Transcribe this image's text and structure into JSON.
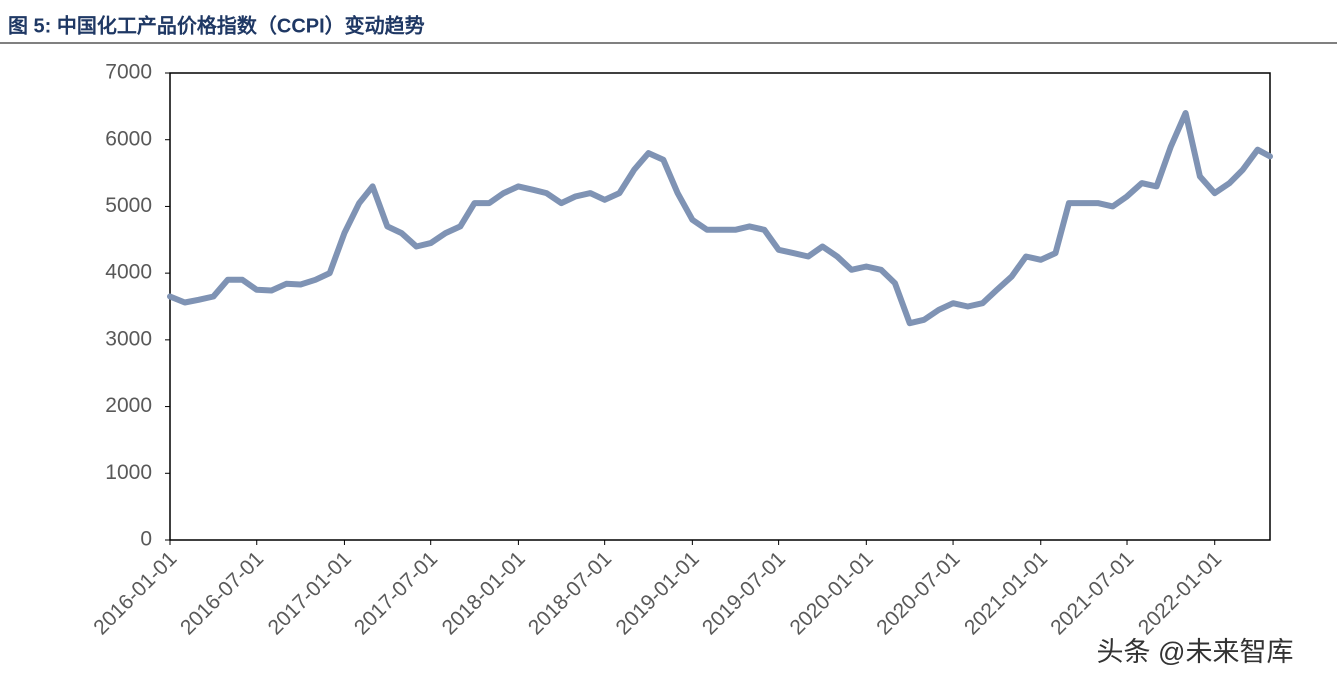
{
  "chart_data": {
    "type": "line",
    "title": "图 5:  中国化工产品价格指数（CCPI）变动趋势",
    "watermark": "头条 @未来智库",
    "x": [
      "2016-01-01",
      "2016-02-01",
      "2016-03-01",
      "2016-04-01",
      "2016-05-01",
      "2016-06-01",
      "2016-07-01",
      "2016-08-01",
      "2016-09-01",
      "2016-10-01",
      "2016-11-01",
      "2016-12-01",
      "2017-01-01",
      "2017-02-01",
      "2017-03-01",
      "2017-04-01",
      "2017-05-01",
      "2017-06-01",
      "2017-07-01",
      "2017-08-01",
      "2017-09-01",
      "2017-10-01",
      "2017-11-01",
      "2017-12-01",
      "2018-01-01",
      "2018-02-01",
      "2018-03-01",
      "2018-04-01",
      "2018-05-01",
      "2018-06-01",
      "2018-07-01",
      "2018-08-01",
      "2018-09-01",
      "2018-10-01",
      "2018-11-01",
      "2018-12-01",
      "2019-01-01",
      "2019-02-01",
      "2019-03-01",
      "2019-04-01",
      "2019-05-01",
      "2019-06-01",
      "2019-07-01",
      "2019-08-01",
      "2019-09-01",
      "2019-10-01",
      "2019-11-01",
      "2019-12-01",
      "2020-01-01",
      "2020-02-01",
      "2020-03-01",
      "2020-04-01",
      "2020-05-01",
      "2020-06-01",
      "2020-07-01",
      "2020-08-01",
      "2020-09-01",
      "2020-10-01",
      "2020-11-01",
      "2020-12-01",
      "2021-01-01",
      "2021-02-01",
      "2021-03-01",
      "2021-04-01",
      "2021-05-01",
      "2021-06-01",
      "2021-07-01",
      "2021-08-01",
      "2021-09-01",
      "2021-10-01",
      "2021-11-01",
      "2021-12-01",
      "2022-01-01",
      "2022-02-01",
      "2022-03-01",
      "2022-04-01",
      "2022-04-27"
    ],
    "series": [
      {
        "name": "CCPI",
        "color": "#7f93b4",
        "values": [
          3650,
          3560,
          3600,
          3650,
          3900,
          3900,
          3750,
          3740,
          3840,
          3830,
          3900,
          4000,
          4600,
          5050,
          5300,
          4700,
          4600,
          4400,
          4450,
          4600,
          4700,
          5050,
          5050,
          5200,
          5300,
          5250,
          5200,
          5050,
          5150,
          5200,
          5100,
          5200,
          5550,
          5800,
          5700,
          5200,
          4800,
          4650,
          4650,
          4650,
          4700,
          4650,
          4350,
          4300,
          4250,
          4400,
          4250,
          4050,
          4100,
          4050,
          3850,
          3250,
          3300,
          3450,
          3550,
          3500,
          3550,
          3750,
          3950,
          4250,
          4200,
          4300,
          5050,
          5050,
          5050,
          5000,
          5150,
          5350,
          5300,
          5900,
          6400,
          5450,
          5200,
          5350,
          5550,
          5850,
          5750
        ]
      }
    ],
    "xlim": [
      "2016-01-01",
      "2022-04-27"
    ],
    "xticks": [
      "2016-01-01",
      "2016-07-01",
      "2017-01-01",
      "2017-07-01",
      "2018-01-01",
      "2018-07-01",
      "2019-01-01",
      "2019-07-01",
      "2020-01-01",
      "2020-07-01",
      "2021-01-01",
      "2021-07-01",
      "2022-01-01"
    ],
    "ylim": [
      0,
      7000
    ],
    "yticks": [
      0,
      1000,
      2000,
      3000,
      4000,
      5000,
      6000,
      7000
    ]
  }
}
